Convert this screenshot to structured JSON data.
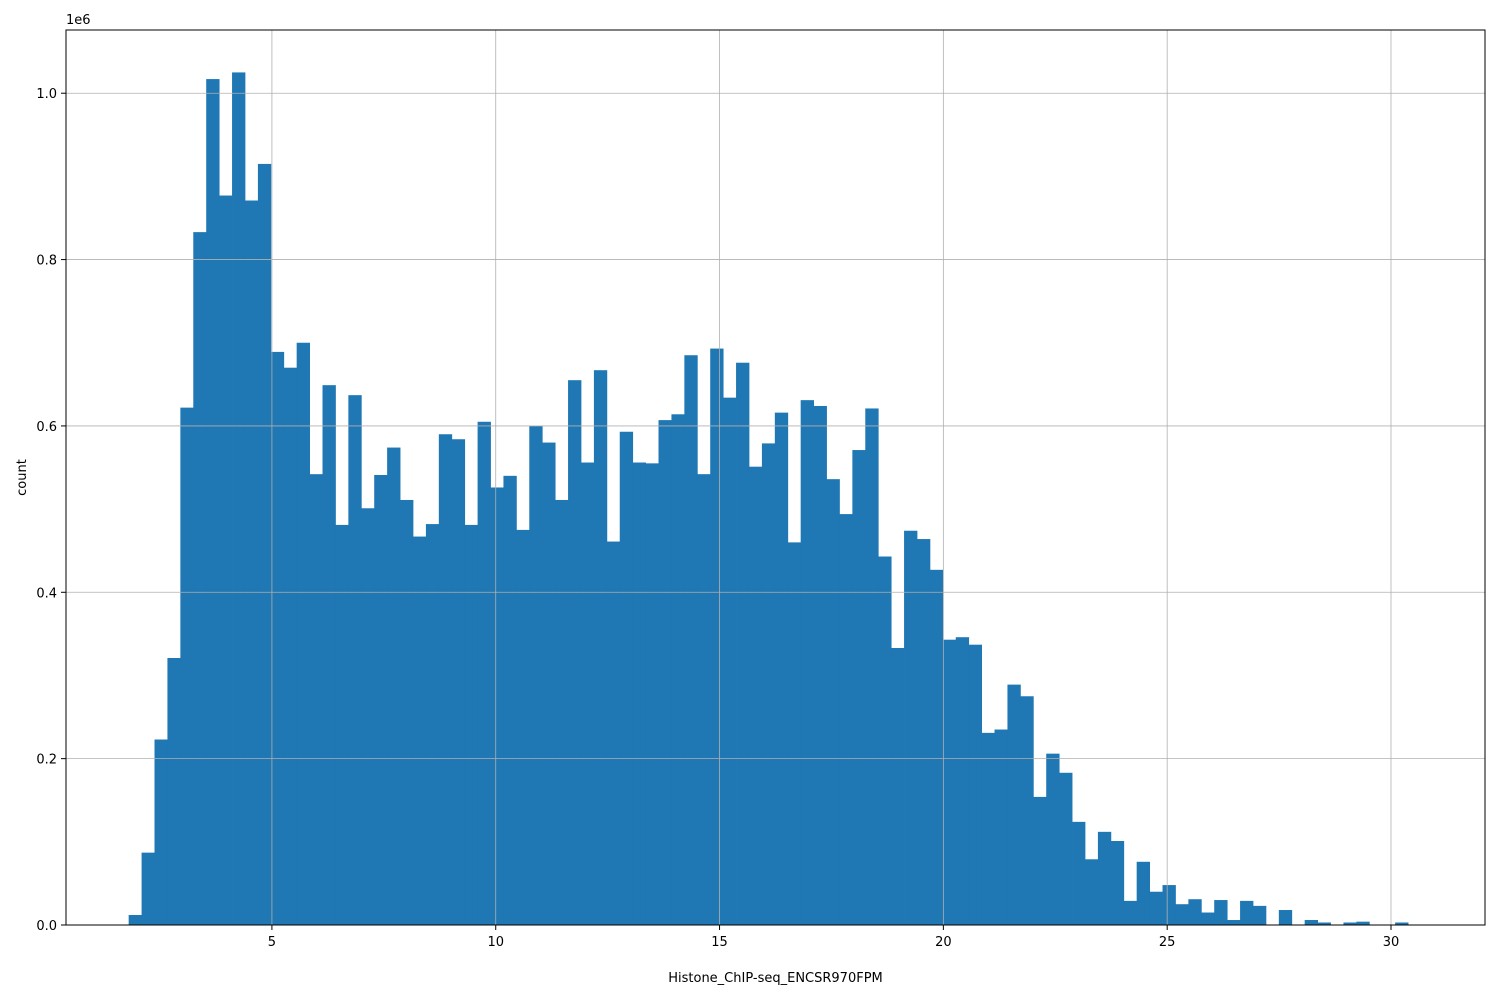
{
  "chart_data": {
    "type": "bar",
    "title": "",
    "xlabel": "Histone_ChIP-seq_ENCSR970FPM",
    "ylabel": "count",
    "y_offset_text": "1e6",
    "xlim": [
      0.4,
      32.1
    ],
    "ylim": [
      0,
      1.076
    ],
    "x_ticks": [
      5,
      10,
      15,
      20,
      25,
      30
    ],
    "x_tick_labels": [
      "5",
      "10",
      "15",
      "20",
      "25",
      "30"
    ],
    "y_ticks": [
      0.0,
      0.2,
      0.4,
      0.6,
      0.8,
      1.0
    ],
    "y_tick_labels": [
      "0.0",
      "0.2",
      "0.4",
      "0.6",
      "0.8",
      "1.0"
    ],
    "grid": true,
    "bar_color": "#1f77b4",
    "bin_start": 1.8,
    "bin_width": 0.2887,
    "values": [
      0.012,
      0.087,
      0.223,
      0.321,
      0.622,
      0.833,
      1.017,
      0.877,
      1.025,
      0.871,
      0.915,
      0.689,
      0.67,
      0.7,
      0.542,
      0.649,
      0.481,
      0.637,
      0.501,
      0.541,
      0.574,
      0.511,
      0.467,
      0.482,
      0.59,
      0.584,
      0.481,
      0.605,
      0.526,
      0.54,
      0.475,
      0.6,
      0.58,
      0.511,
      0.655,
      0.556,
      0.667,
      0.461,
      0.593,
      0.556,
      0.555,
      0.607,
      0.614,
      0.685,
      0.542,
      0.693,
      0.634,
      0.676,
      0.551,
      0.579,
      0.616,
      0.46,
      0.631,
      0.624,
      0.536,
      0.494,
      0.571,
      0.621,
      0.443,
      0.333,
      0.474,
      0.464,
      0.427,
      0.343,
      0.346,
      0.337,
      0.231,
      0.235,
      0.289,
      0.275,
      0.154,
      0.206,
      0.183,
      0.124,
      0.079,
      0.112,
      0.101,
      0.029,
      0.076,
      0.04,
      0.048,
      0.025,
      0.031,
      0.015,
      0.03,
      0.006,
      0.029,
      0.023,
      0.0,
      0.018,
      0.0,
      0.006,
      0.003,
      0.0,
      0.003,
      0.004,
      0.0,
      0.0,
      0.003
    ]
  }
}
